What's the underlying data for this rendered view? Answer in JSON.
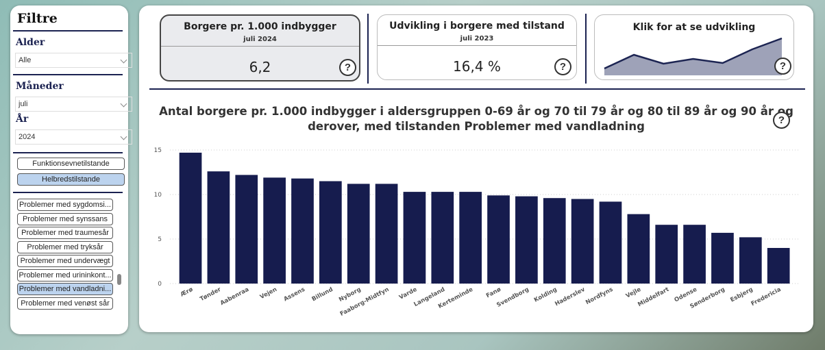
{
  "filters": {
    "title": "Filtre",
    "age": {
      "label": "Alder",
      "value": "Alle"
    },
    "month": {
      "label": "Måneder",
      "value": "juli"
    },
    "year": {
      "label": "År",
      "value": "2024"
    },
    "groups": [
      "Funktionsevnetilstande",
      "Helbredstilstande"
    ],
    "conditions": [
      "Problemer med sygdomsi...",
      "Problemer med synssans",
      "Problemer med traumesår",
      "Problemer med tryksår",
      "Problemer med undervægt",
      "Problemer med urininkont...",
      "Problemer med vandladni...",
      "Problemer med venøst sår"
    ]
  },
  "help_icon": "?",
  "cards": [
    {
      "title": "Borgere pr. 1.000 indbygger",
      "subtitle": "juli 2024",
      "value": "6,2"
    },
    {
      "title": "Udvikling i borgere med tilstand",
      "subtitle": "juli 2023",
      "value": "16,4 %"
    },
    {
      "title": "Klik for at se udvikling",
      "sparkline": [
        10,
        30,
        17,
        24,
        18,
        38,
        54
      ]
    }
  ],
  "chart_data": {
    "type": "bar",
    "title": "Antal borgere pr. 1.000 indbygger i aldersgruppen 0-69 år og 70 til 79 år og 80 til 89 år og 90 år og derover, med tilstanden Problemer med vandladning",
    "categories": [
      "Ærø",
      "Tønder",
      "Aabenraa",
      "Vejen",
      "Assens",
      "Billund",
      "Nyborg",
      "Faaborg-Midtfyn",
      "Varde",
      "Langeland",
      "Kerteminde",
      "Fanø",
      "Svendborg",
      "Kolding",
      "Haderslev",
      "Nordfyns",
      "Vejle",
      "Middelfart",
      "Odense",
      "Sønderborg",
      "Esbjerg",
      "Fredericia"
    ],
    "values": [
      14.7,
      12.6,
      12.2,
      11.9,
      11.8,
      11.5,
      11.2,
      11.2,
      10.3,
      10.3,
      10.3,
      9.9,
      9.8,
      9.6,
      9.5,
      9.2,
      7.8,
      6.6,
      6.6,
      5.7,
      5.2,
      4.0
    ],
    "color": "#161c4e",
    "ylim": [
      0,
      15
    ],
    "yticks": [
      0,
      5,
      10,
      15
    ],
    "grid": true
  }
}
